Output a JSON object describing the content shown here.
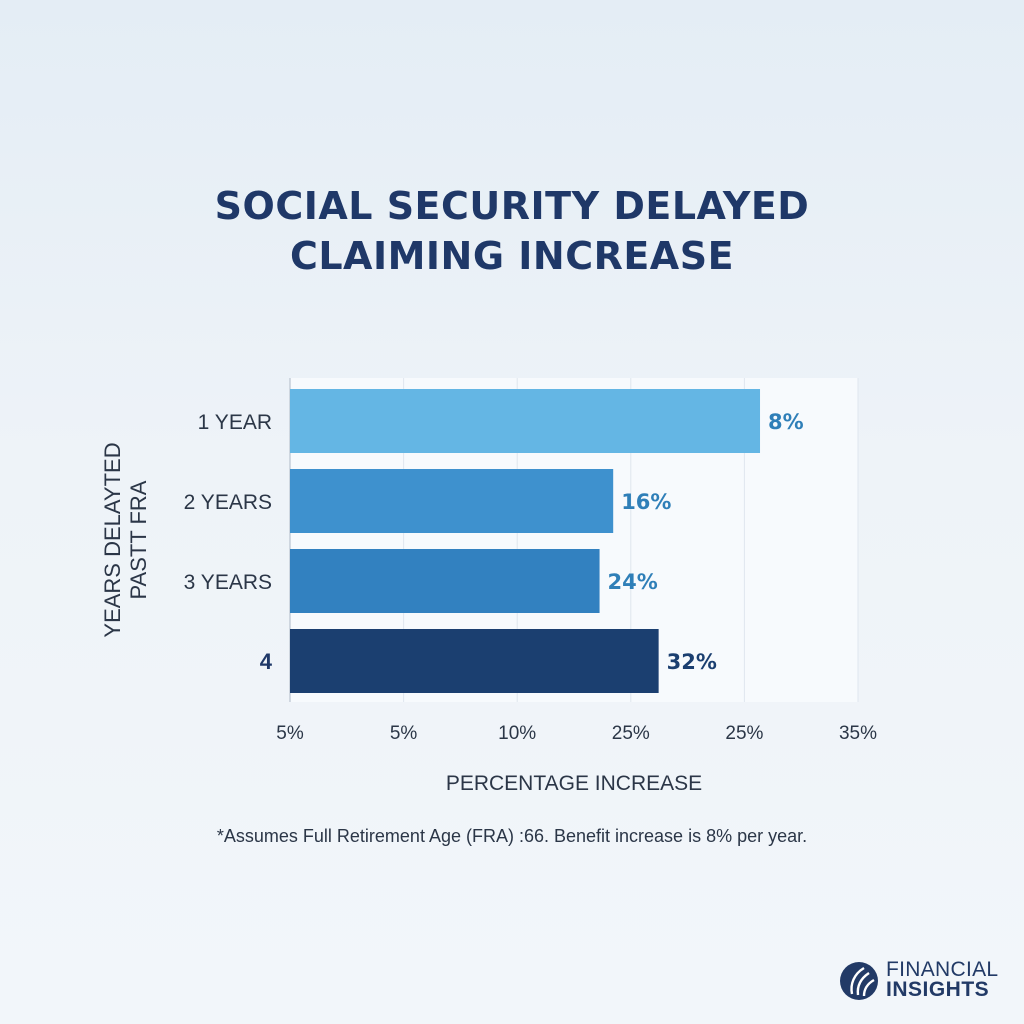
{
  "chart_data": {
    "type": "bar",
    "orientation": "horizontal",
    "title_line1": "SOCIAL SECURITY DELAYED",
    "title_line2": "CLAIMING INCREASE",
    "ylabel_line1": "YEARS DELAYTED",
    "ylabel_line2": "PASTT FRA",
    "xlabel": "PERCENTAGE INCREASE",
    "categories": [
      "1 YEAR",
      "2 YEARS",
      "3 YEARS",
      "4"
    ],
    "values": [
      8,
      16,
      24,
      32
    ],
    "data_labels": [
      "8%",
      "16%",
      "24%",
      "32%"
    ],
    "bar_colors": [
      "#64b6e4",
      "#3e91ce",
      "#3281c0",
      "#1b3f70"
    ],
    "label_colors": [
      "#2f7fb8",
      "#2f7fb8",
      "#2f7fb8",
      "#1b3f70"
    ],
    "x_tick_labels": [
      "5%",
      "5%",
      "10%",
      "25%",
      "25%",
      "35%"
    ],
    "grid": true,
    "legend": "none"
  },
  "footnote": "*Assumes Full Retirement Age (FRA) :66. Benefit increase is 8% per year.",
  "logo": {
    "line1": "FINANCIAL",
    "line2": "INSIGHTS",
    "icon": "leaf-globe-icon"
  }
}
